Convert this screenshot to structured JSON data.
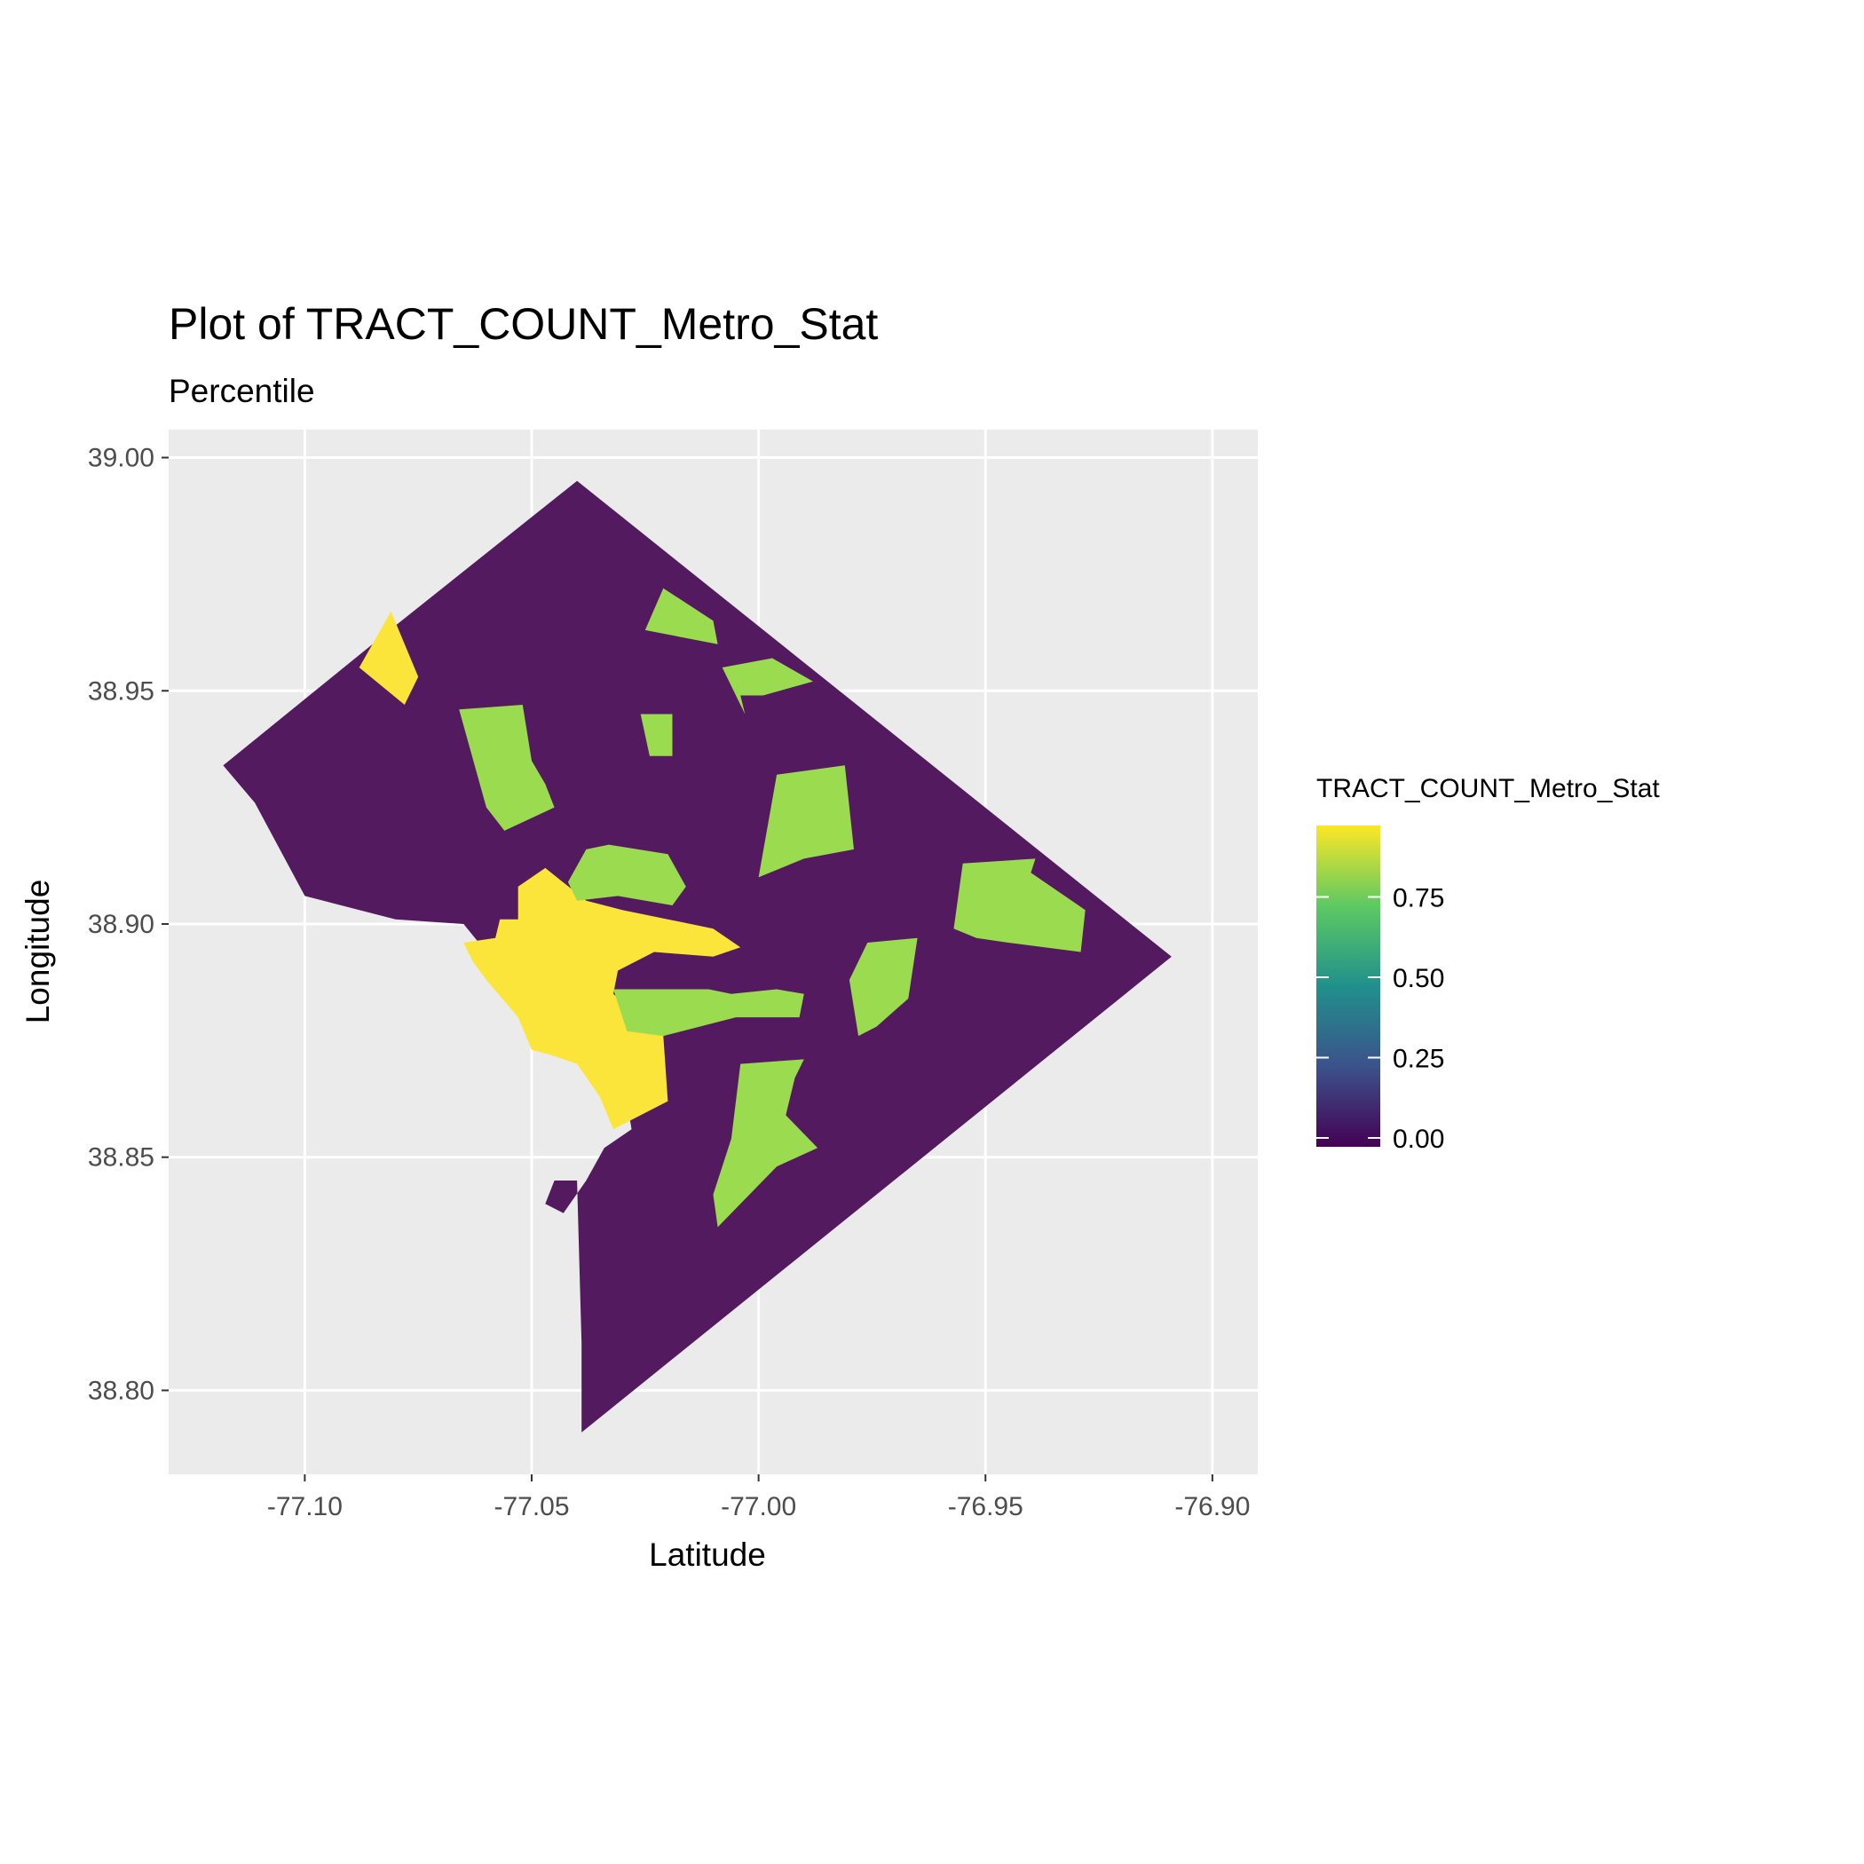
{
  "chart_data": {
    "type": "choropleth",
    "title": "Plot of TRACT_COUNT_Metro_Stat",
    "subtitle": "Percentile",
    "xlabel": "Latitude",
    "ylabel": "Longitude",
    "xlim": [
      -77.13,
      -76.89
    ],
    "ylim": [
      38.782,
      39.006
    ],
    "x_ticks": [
      "-77.10",
      "-77.05",
      "-77.00",
      "-76.95",
      "-76.90"
    ],
    "x_tick_values": [
      -77.1,
      -77.05,
      -77.0,
      -76.95,
      -76.9
    ],
    "y_ticks": [
      "39.00",
      "38.95",
      "38.90",
      "38.85",
      "38.80"
    ],
    "y_tick_values": [
      39.0,
      38.95,
      38.9,
      38.85,
      38.8
    ],
    "grid": true,
    "panel_background": "#ebebeb",
    "legend": {
      "title": "TRACT_COUNT_Metro_Stat",
      "placement": "right",
      "breaks": [
        "0.75",
        "0.50",
        "0.25",
        "0.00"
      ],
      "break_values": [
        0.75,
        0.5,
        0.25,
        0.0
      ],
      "range": [
        0,
        1
      ],
      "palette": [
        "#440154",
        "#3b528b",
        "#21908c",
        "#5dc963",
        "#fde725"
      ]
    },
    "colors": {
      "low": "#541a5f",
      "high_green": "#9bdb4f",
      "top_yellow": "#fbe53a"
    },
    "regions": [
      {
        "name": "district-boundary",
        "value": 0.0,
        "coords": [
          [
            -77.04,
            38.995
          ],
          [
            -76.909,
            38.893
          ],
          [
            -77.039,
            38.791
          ],
          [
            -77.039,
            38.81
          ],
          [
            -77.04,
            38.845
          ],
          [
            -77.045,
            38.845
          ],
          [
            -77.047,
            38.84
          ],
          [
            -77.043,
            38.838
          ],
          [
            -77.038,
            38.845
          ],
          [
            -77.034,
            38.852
          ],
          [
            -77.028,
            38.856
          ],
          [
            -77.031,
            38.874
          ],
          [
            -77.038,
            38.88
          ],
          [
            -77.05,
            38.88
          ],
          [
            -77.06,
            38.894
          ],
          [
            -77.065,
            38.9
          ],
          [
            -77.08,
            38.901
          ],
          [
            -77.1,
            38.906
          ],
          [
            -77.111,
            38.926
          ],
          [
            -77.118,
            38.934
          ],
          [
            -77.08,
            38.964
          ],
          [
            -77.04,
            38.995
          ]
        ]
      },
      {
        "name": "tract-northwest-yellow",
        "value": 1.0,
        "coords": [
          [
            -77.088,
            38.955
          ],
          [
            -77.081,
            38.967
          ],
          [
            -77.075,
            38.953
          ],
          [
            -77.078,
            38.947
          ]
        ]
      },
      {
        "name": "tract-central-yellow",
        "value": 1.0,
        "coords": [
          [
            -77.065,
            38.896
          ],
          [
            -77.058,
            38.897
          ],
          [
            -77.057,
            38.901
          ],
          [
            -77.053,
            38.901
          ],
          [
            -77.053,
            38.908
          ],
          [
            -77.047,
            38.912
          ],
          [
            -77.038,
            38.905
          ],
          [
            -77.03,
            38.903
          ],
          [
            -77.02,
            38.901
          ],
          [
            -77.01,
            38.899
          ],
          [
            -77.004,
            38.895
          ],
          [
            -77.01,
            38.893
          ],
          [
            -77.023,
            38.894
          ],
          [
            -77.031,
            38.89
          ],
          [
            -77.032,
            38.885
          ],
          [
            -77.021,
            38.876
          ],
          [
            -77.02,
            38.862
          ],
          [
            -77.032,
            38.856
          ],
          [
            -77.035,
            38.863
          ],
          [
            -77.04,
            38.87
          ],
          [
            -77.046,
            38.872
          ],
          [
            -77.05,
            38.873
          ],
          [
            -77.053,
            38.88
          ],
          [
            -77.06,
            38.888
          ],
          [
            -77.063,
            38.892
          ]
        ]
      },
      {
        "name": "tract-north-green",
        "value": 0.85,
        "coords": [
          [
            -77.021,
            38.972
          ],
          [
            -77.01,
            38.965
          ],
          [
            -77.009,
            38.96
          ],
          [
            -77.025,
            38.963
          ]
        ]
      },
      {
        "name": "tract-northeast-strip-green",
        "value": 0.85,
        "coords": [
          [
            -77.008,
            38.955
          ],
          [
            -76.997,
            38.957
          ],
          [
            -76.988,
            38.952
          ],
          [
            -76.999,
            38.949
          ],
          [
            -77.004,
            38.949
          ],
          [
            -77.003,
            38.945
          ]
        ]
      },
      {
        "name": "tract-west-green",
        "value": 0.85,
        "coords": [
          [
            -77.066,
            38.946
          ],
          [
            -77.052,
            38.947
          ],
          [
            -77.05,
            38.935
          ],
          [
            -77.047,
            38.93
          ],
          [
            -77.045,
            38.925
          ],
          [
            -77.056,
            38.92
          ],
          [
            -77.06,
            38.925
          ]
        ]
      },
      {
        "name": "tract-midnorth-green",
        "value": 0.85,
        "coords": [
          [
            -77.026,
            38.945
          ],
          [
            -77.019,
            38.945
          ],
          [
            -77.019,
            38.936
          ],
          [
            -77.024,
            38.936
          ]
        ]
      },
      {
        "name": "tract-northeast-green",
        "value": 0.85,
        "coords": [
          [
            -76.996,
            38.932
          ],
          [
            -76.981,
            38.934
          ],
          [
            -76.979,
            38.916
          ],
          [
            -76.99,
            38.914
          ],
          [
            -77.0,
            38.91
          ]
        ]
      },
      {
        "name": "tract-center-green",
        "value": 0.85,
        "coords": [
          [
            -77.038,
            38.916
          ],
          [
            -77.033,
            38.917
          ],
          [
            -77.02,
            38.915
          ],
          [
            -77.016,
            38.908
          ],
          [
            -77.019,
            38.904
          ],
          [
            -77.031,
            38.906
          ],
          [
            -77.04,
            38.905
          ],
          [
            -77.042,
            38.909
          ]
        ]
      },
      {
        "name": "tract-east-green",
        "value": 0.85,
        "coords": [
          [
            -76.955,
            38.913
          ],
          [
            -76.939,
            38.914
          ],
          [
            -76.94,
            38.911
          ],
          [
            -76.928,
            38.903
          ],
          [
            -76.929,
            38.894
          ],
          [
            -76.937,
            38.895
          ],
          [
            -76.945,
            38.896
          ],
          [
            -76.952,
            38.897
          ],
          [
            -76.957,
            38.899
          ]
        ]
      },
      {
        "name": "tract-southcentral-green",
        "value": 0.85,
        "coords": [
          [
            -77.032,
            38.886
          ],
          [
            -77.011,
            38.886
          ],
          [
            -77.006,
            38.885
          ],
          [
            -76.996,
            38.886
          ],
          [
            -76.99,
            38.885
          ],
          [
            -76.991,
            38.88
          ],
          [
            -77.005,
            38.88
          ],
          [
            -77.021,
            38.876
          ],
          [
            -77.029,
            38.877
          ]
        ]
      },
      {
        "name": "tract-southeast-mid-green",
        "value": 0.85,
        "coords": [
          [
            -76.965,
            38.897
          ],
          [
            -76.976,
            38.896
          ],
          [
            -76.98,
            38.888
          ],
          [
            -76.978,
            38.876
          ],
          [
            -76.974,
            38.878
          ],
          [
            -76.967,
            38.884
          ]
        ]
      },
      {
        "name": "tract-southeast-green",
        "value": 0.85,
        "coords": [
          [
            -77.004,
            38.87
          ],
          [
            -76.99,
            38.871
          ],
          [
            -76.992,
            38.867
          ],
          [
            -76.994,
            38.859
          ],
          [
            -76.987,
            38.852
          ],
          [
            -76.996,
            38.848
          ],
          [
            -77.009,
            38.835
          ],
          [
            -77.01,
            38.842
          ],
          [
            -77.006,
            38.854
          ]
        ]
      }
    ]
  }
}
